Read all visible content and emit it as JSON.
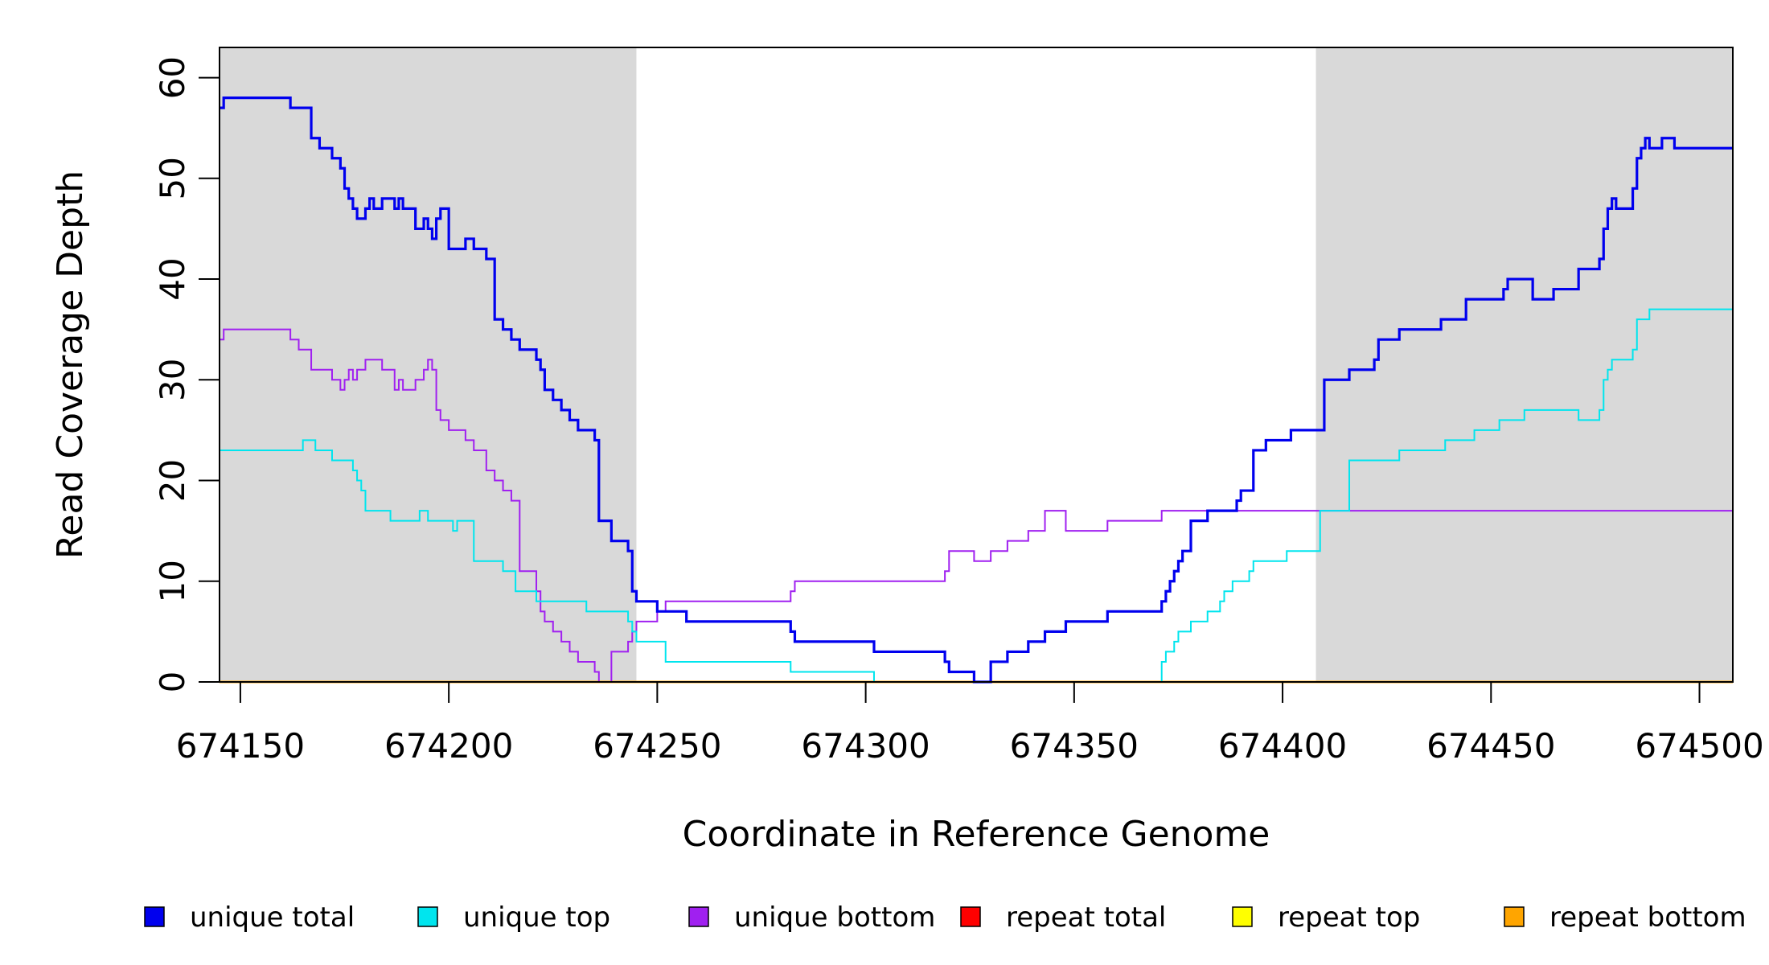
{
  "chart_data": {
    "type": "line",
    "step": true,
    "xlabel": "Coordinate in Reference Genome",
    "ylabel": "Read Coverage Depth",
    "xlim": [
      674145,
      674508
    ],
    "ylim": [
      0,
      63
    ],
    "xticks": [
      674150,
      674200,
      674250,
      674300,
      674350,
      674400,
      674450,
      674500
    ],
    "yticks": [
      0,
      10,
      20,
      30,
      40,
      50,
      60
    ],
    "shaded_regions": [
      {
        "start": 674145,
        "end": 674245,
        "color": "#d9d9d9"
      },
      {
        "start": 674408,
        "end": 674508,
        "color": "#d9d9d9"
      }
    ],
    "legend_position": "bottom",
    "series": [
      {
        "name": "unique total",
        "color": "#0000ee",
        "x": [
          674145,
          674146,
          674162,
          674167,
          674169,
          674172,
          674174,
          674175,
          674176,
          674177,
          674178,
          674180,
          674181,
          674182,
          674184,
          674187,
          674188,
          674189,
          674192,
          674194,
          674195,
          674196,
          674197,
          674198,
          674200,
          674204,
          674206,
          674209,
          674211,
          674213,
          674215,
          674217,
          674221,
          674222,
          674223,
          674225,
          674227,
          674229,
          674231,
          674235,
          674236,
          674239,
          674243,
          674244,
          674245,
          674250,
          674257,
          674282,
          674283,
          674302,
          674319,
          674320,
          674326,
          674330,
          674334,
          674339,
          674343,
          674348,
          674358,
          674371,
          674372,
          674373,
          674374,
          674375,
          674376,
          674378,
          674382,
          674389,
          674390,
          674393,
          674396,
          674402,
          674410,
          674416,
          674422,
          674423,
          674428,
          674438,
          674444,
          674453,
          674454,
          674460,
          674465,
          674471,
          674476,
          674477,
          674478,
          674479,
          674480,
          674484,
          674485,
          674486,
          674487,
          674488,
          674491,
          674494,
          674503,
          674504,
          674505,
          674506,
          674508
        ],
        "y": [
          57,
          58,
          57,
          54,
          53,
          52,
          51,
          49,
          48,
          47,
          46,
          47,
          48,
          47,
          48,
          47,
          48,
          47,
          45,
          46,
          45,
          44,
          46,
          47,
          43,
          44,
          43,
          42,
          36,
          35,
          34,
          33,
          32,
          31,
          29,
          28,
          27,
          26,
          25,
          24,
          16,
          14,
          13,
          9,
          8,
          7,
          6,
          5,
          4,
          3,
          2,
          1,
          0,
          2,
          3,
          4,
          5,
          6,
          7,
          8,
          9,
          10,
          11,
          12,
          13,
          16,
          17,
          18,
          19,
          23,
          24,
          25,
          30,
          31,
          32,
          34,
          35,
          36,
          38,
          39,
          40,
          38,
          39,
          41,
          42,
          45,
          47,
          48,
          47,
          49,
          52,
          53,
          54,
          53,
          54,
          53,
          53,
          53,
          53,
          53,
          53
        ],
        "y_note": ""
      },
      {
        "name": "unique top",
        "color": "#00e5ee",
        "x": [
          674145,
          674165,
          674168,
          674172,
          674177,
          674178,
          674179,
          674180,
          674186,
          674193,
          674195,
          674201,
          674202,
          674206,
          674213,
          674216,
          674221,
          674233,
          674243,
          674244,
          674245,
          674252,
          674282,
          674302,
          674330,
          674346,
          674371,
          674372,
          674374,
          674375,
          674378,
          674382,
          674385,
          674386,
          674388,
          674392,
          674393,
          674401,
          674409,
          674416,
          674428,
          674439,
          674446,
          674452,
          674458,
          674471,
          674476,
          674477,
          674478,
          674479,
          674484,
          674485,
          674488,
          674492,
          674502,
          674503,
          674504,
          674505,
          674508
        ],
        "y": [
          23,
          24,
          23,
          22,
          21,
          20,
          19,
          17,
          16,
          17,
          16,
          15,
          16,
          12,
          11,
          9,
          8,
          7,
          6,
          5,
          4,
          2,
          1,
          0,
          0,
          0,
          2,
          3,
          4,
          5,
          6,
          7,
          8,
          9,
          10,
          11,
          12,
          13,
          17,
          22,
          23,
          24,
          25,
          26,
          27,
          26,
          27,
          30,
          31,
          32,
          33,
          36,
          37,
          37,
          37,
          37,
          37,
          37,
          37
        ],
        "y_note": ""
      },
      {
        "name": "unique bottom",
        "color": "#a020f0",
        "x": [
          674145,
          674146,
          674162,
          674164,
          674167,
          674172,
          674174,
          674175,
          674176,
          674177,
          674178,
          674180,
          674184,
          674187,
          674188,
          674189,
          674192,
          674194,
          674195,
          674196,
          674197,
          674198,
          674200,
          674204,
          674206,
          674209,
          674211,
          674213,
          674215,
          674217,
          674221,
          674222,
          674223,
          674225,
          674227,
          674229,
          674231,
          674235,
          674236,
          674239,
          674243,
          674244,
          674245,
          674250,
          674252,
          674282,
          674283,
          674319,
          674320,
          674326,
          674330,
          674334,
          674339,
          674343,
          674348,
          674358,
          674371,
          674372,
          674373,
          674374,
          674375,
          674376,
          674378,
          674420,
          674421,
          674428,
          674446,
          674447,
          674448,
          674454,
          674455,
          674466,
          674467,
          674468,
          674469,
          674470,
          674476,
          674477,
          674478,
          674479,
          674484,
          674485,
          674486,
          674487,
          674488,
          674491,
          674494,
          674503,
          674504,
          674505,
          674506,
          674508
        ],
        "y": [
          34,
          35,
          34,
          33,
          31,
          30,
          29,
          30,
          31,
          30,
          31,
          32,
          31,
          29,
          30,
          29,
          30,
          31,
          32,
          31,
          27,
          26,
          25,
          24,
          23,
          21,
          20,
          19,
          18,
          11,
          9,
          7,
          6,
          5,
          4,
          3,
          2,
          1,
          0,
          3,
          4,
          5,
          6,
          7,
          8,
          9,
          10,
          11,
          13,
          12,
          13,
          14,
          15,
          17,
          15,
          16,
          17,
          17,
          17,
          17,
          17,
          17,
          17,
          17,
          17,
          17,
          17,
          17,
          17,
          17,
          17,
          17,
          17,
          17,
          17,
          17,
          17,
          17,
          17,
          17,
          17,
          17,
          17,
          17,
          17,
          17,
          17,
          17,
          17,
          17,
          17,
          17
        ],
        "y_note": ""
      },
      {
        "name": "repeat total",
        "color": "#ff0000",
        "x": [
          674145,
          674508
        ],
        "y": [
          0,
          0
        ]
      },
      {
        "name": "repeat top",
        "color": "#ffff00",
        "x": [
          674145,
          674508
        ],
        "y": [
          0,
          0
        ]
      },
      {
        "name": "repeat bottom",
        "color": "#ffa500",
        "x": [
          674145,
          674508
        ],
        "y": [
          0,
          0
        ]
      }
    ]
  }
}
